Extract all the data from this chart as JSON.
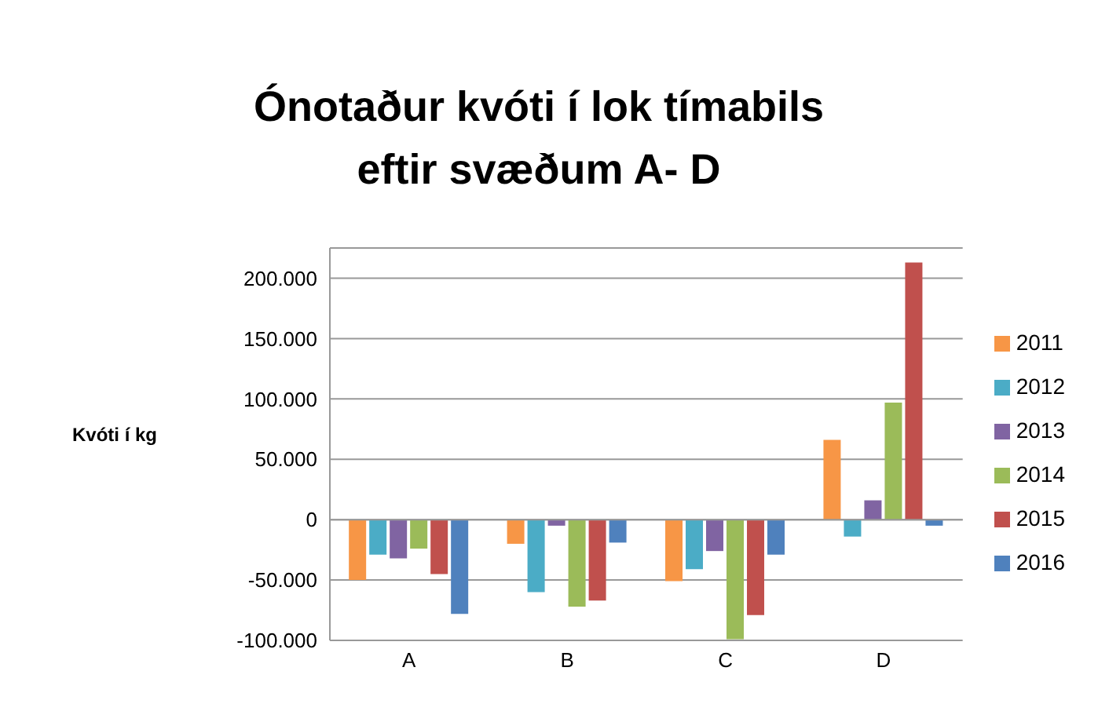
{
  "chart_data": {
    "type": "bar",
    "title": "Ónotaður kvóti í lok tímabils eftir svæðum A- D",
    "ylabel": "Kvóti í kg",
    "categories": [
      "A",
      "B",
      "C",
      "D"
    ],
    "series": [
      {
        "name": "2011",
        "color": "#f79646",
        "values": [
          -50000,
          -20000,
          -51000,
          66000
        ]
      },
      {
        "name": "2012",
        "color": "#4bacc6",
        "values": [
          -29000,
          -60000,
          -41000,
          -14000
        ]
      },
      {
        "name": "2013",
        "color": "#8064a2",
        "values": [
          -32000,
          -5000,
          -26000,
          16000
        ]
      },
      {
        "name": "2014",
        "color": "#9bbb59",
        "values": [
          -24000,
          -72000,
          -99000,
          97000
        ]
      },
      {
        "name": "2015",
        "color": "#c0504d",
        "values": [
          -45000,
          -67000,
          -79000,
          213000
        ]
      },
      {
        "name": "2016",
        "color": "#4f81bd",
        "values": [
          -78000,
          -19000,
          -29000,
          -5000
        ]
      }
    ],
    "ylim": [
      -100000,
      225000
    ],
    "yticks": [
      {
        "value": -100000,
        "label": "-100.000"
      },
      {
        "value": -50000,
        "label": "-50.000"
      },
      0,
      {
        "value": 50000,
        "label": "50.000"
      },
      {
        "value": 100000,
        "label": "100.000"
      },
      {
        "value": 150000,
        "label": "150.000"
      },
      {
        "value": 200000,
        "label": "200.000"
      }
    ],
    "grid": "y",
    "legend": "right"
  }
}
